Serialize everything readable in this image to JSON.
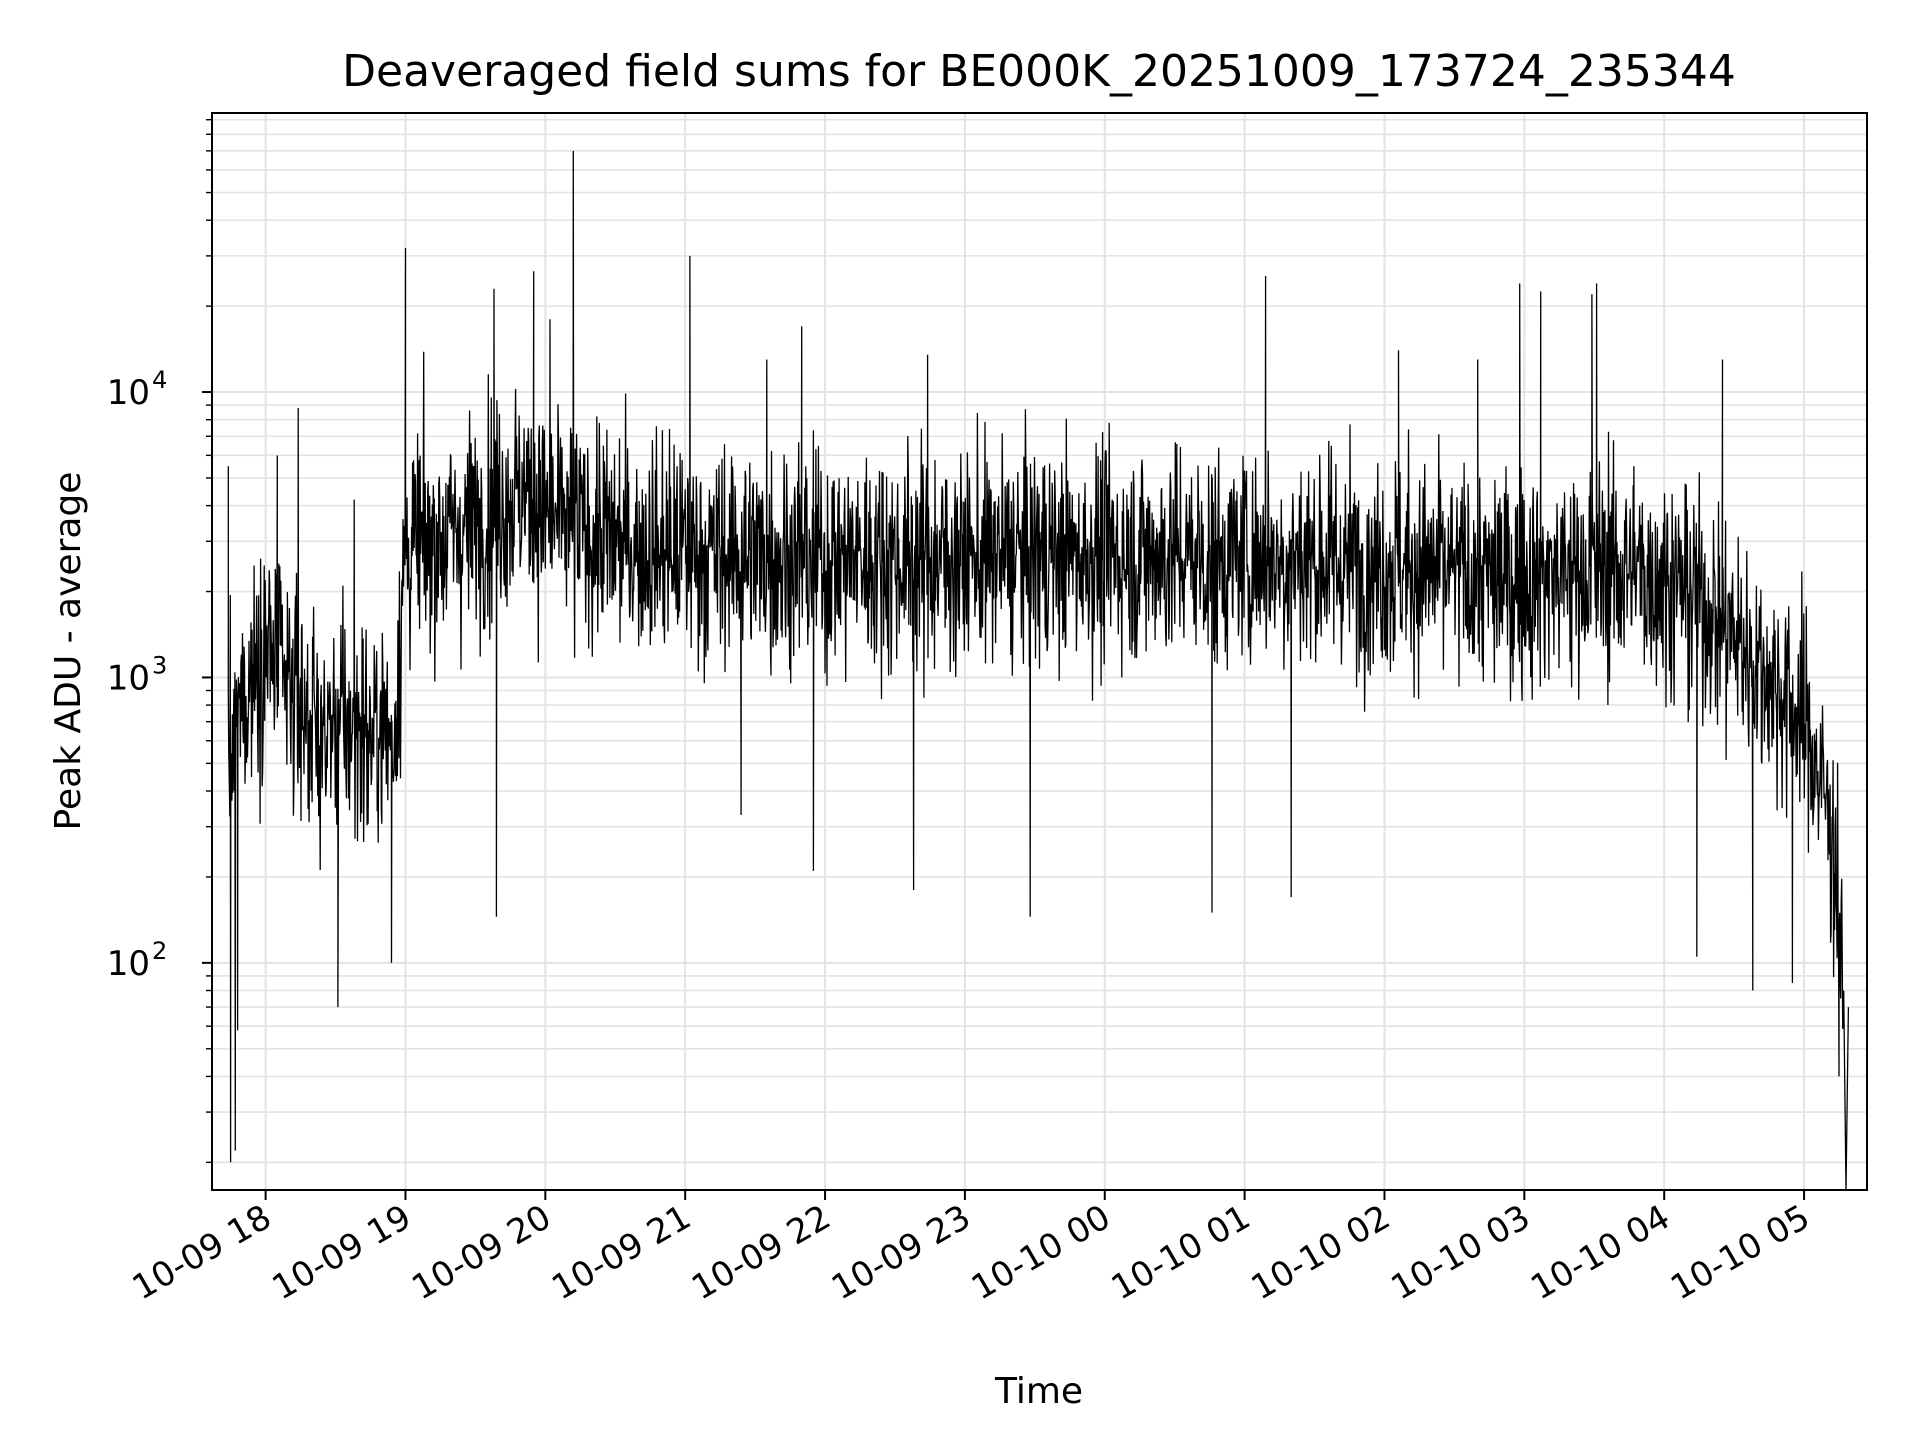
{
  "chart_data": {
    "type": "line",
    "title": "Deaveraged field sums for BE000K_20251009_173724_235344",
    "xlabel": "Time",
    "ylabel": "Peak ADU - average",
    "yscale": "log",
    "ylim": [
      16,
      95000
    ],
    "xlim": [
      "2025-10-09 17:37",
      "2025-10-10 05:27"
    ],
    "grid": true,
    "series_color": "#000000",
    "x_ticks": [
      {
        "label": "10-09 18",
        "t": "2025-10-09 18:00"
      },
      {
        "label": "10-09 19",
        "t": "2025-10-09 19:00"
      },
      {
        "label": "10-09 20",
        "t": "2025-10-09 20:00"
      },
      {
        "label": "10-09 21",
        "t": "2025-10-09 21:00"
      },
      {
        "label": "10-09 22",
        "t": "2025-10-09 22:00"
      },
      {
        "label": "10-09 23",
        "t": "2025-10-09 23:00"
      },
      {
        "label": "10-10 00",
        "t": "2025-10-10 00:00"
      },
      {
        "label": "10-10 01",
        "t": "2025-10-10 01:00"
      },
      {
        "label": "10-10 02",
        "t": "2025-10-10 02:00"
      },
      {
        "label": "10-10 03",
        "t": "2025-10-10 03:00"
      },
      {
        "label": "10-10 04",
        "t": "2025-10-10 04:00"
      },
      {
        "label": "10-10 05",
        "t": "2025-10-10 05:00"
      }
    ],
    "y_ticks": [
      {
        "base": "10",
        "exp": "2",
        "value": 100
      },
      {
        "base": "10",
        "exp": "3",
        "value": 1000
      },
      {
        "base": "10",
        "exp": "4",
        "value": 10000
      }
    ],
    "series": [
      {
        "x": [
          "2025-10-09 17:44",
          "2025-10-09 17:46",
          "2025-10-09 17:48",
          "2025-10-09 17:50",
          "2025-10-09 17:52",
          "2025-10-09 17:55",
          "2025-10-09 18:00",
          "2025-10-09 18:05",
          "2025-10-09 18:09",
          "2025-10-09 18:15",
          "2025-10-09 18:20",
          "2025-10-09 18:25",
          "2025-10-09 18:30",
          "2025-10-09 18:35",
          "2025-10-09 18:40",
          "2025-10-09 18:45",
          "2025-10-09 18:50",
          "2025-10-09 18:55",
          "2025-10-09 19:00",
          "2025-10-09 19:05",
          "2025-10-09 19:10",
          "2025-10-09 19:20",
          "2025-10-09 19:30",
          "2025-10-09 19:38",
          "2025-10-09 19:45",
          "2025-10-09 19:50",
          "2025-10-09 19:55",
          "2025-10-09 20:00",
          "2025-10-09 20:05",
          "2025-10-09 20:12",
          "2025-10-09 20:20",
          "2025-10-09 20:30",
          "2025-10-09 20:40",
          "2025-10-09 20:50",
          "2025-10-09 21:00",
          "2025-10-09 21:10",
          "2025-10-09 21:20",
          "2025-10-09 21:30",
          "2025-10-09 21:45",
          "2025-10-09 21:55",
          "2025-10-09 22:00",
          "2025-10-09 22:15",
          "2025-10-09 22:30",
          "2025-10-09 22:45",
          "2025-10-09 22:55",
          "2025-10-09 23:00",
          "2025-10-09 23:15",
          "2025-10-09 23:30",
          "2025-10-09 23:45",
          "2025-10-10 00:00",
          "2025-10-10 00:15",
          "2025-10-10 00:30",
          "2025-10-10 00:45",
          "2025-10-10 00:55",
          "2025-10-10 01:00",
          "2025-10-10 01:15",
          "2025-10-10 01:30",
          "2025-10-10 01:45",
          "2025-10-10 02:00",
          "2025-10-10 02:15",
          "2025-10-10 02:30",
          "2025-10-10 02:45",
          "2025-10-10 03:00",
          "2025-10-10 03:15",
          "2025-10-10 03:30",
          "2025-10-10 03:45",
          "2025-10-10 04:00",
          "2025-10-10 04:10",
          "2025-10-10 04:20",
          "2025-10-10 04:30",
          "2025-10-10 04:40",
          "2025-10-10 04:50",
          "2025-10-10 05:00",
          "2025-10-10 05:05",
          "2025-10-10 05:10",
          "2025-10-10 05:13",
          "2025-10-10 05:15",
          "2025-10-10 05:17"
        ],
        "center": [
          600,
          500,
          700,
          800,
          900,
          1100,
          1300,
          1100,
          900,
          800,
          700,
          600,
          700,
          650,
          700,
          600,
          700,
          600,
          2800,
          2900,
          3000,
          3200,
          3500,
          4000,
          4300,
          4500,
          4000,
          3800,
          3500,
          3400,
          3200,
          3000,
          2900,
          2800,
          2800,
          2700,
          2700,
          2700,
          2600,
          2600,
          2600,
          2600,
          2600,
          2600,
          2600,
          2600,
          2650,
          2700,
          2700,
          2700,
          2700,
          2700,
          2600,
          2600,
          2700,
          2600,
          2600,
          2500,
          2500,
          2400,
          2300,
          2200,
          2200,
          2300,
          2400,
          2400,
          2200,
          2000,
          1700,
          1400,
          1100,
          900,
          700,
          500,
          350,
          250,
          150,
          60
        ],
        "spikes": [
          {
            "x": "2025-10-09 17:44",
            "y": 5500
          },
          {
            "x": "2025-10-09 17:45",
            "y": 20
          },
          {
            "x": "2025-10-09 17:47",
            "y": 22
          },
          {
            "x": "2025-10-09 17:48",
            "y": 58
          },
          {
            "x": "2025-10-09 18:05",
            "y": 6000
          },
          {
            "x": "2025-10-09 18:14",
            "y": 8800
          },
          {
            "x": "2025-10-09 18:31",
            "y": 70
          },
          {
            "x": "2025-10-09 18:38",
            "y": 4200
          },
          {
            "x": "2025-10-09 18:54",
            "y": 100
          },
          {
            "x": "2025-10-09 19:00",
            "y": 32000
          },
          {
            "x": "2025-10-09 19:38",
            "y": 23000
          },
          {
            "x": "2025-10-09 19:39",
            "y": 145
          },
          {
            "x": "2025-10-09 19:55",
            "y": 26500
          },
          {
            "x": "2025-10-09 20:02",
            "y": 18000
          },
          {
            "x": "2025-10-09 20:12",
            "y": 70000
          },
          {
            "x": "2025-10-09 21:02",
            "y": 30000
          },
          {
            "x": "2025-10-09 21:24",
            "y": 330
          },
          {
            "x": "2025-10-09 21:35",
            "y": 13000
          },
          {
            "x": "2025-10-09 21:50",
            "y": 17000
          },
          {
            "x": "2025-10-09 21:55",
            "y": 210
          },
          {
            "x": "2025-10-09 22:38",
            "y": 180
          },
          {
            "x": "2025-10-09 22:44",
            "y": 13500
          },
          {
            "x": "2025-10-09 23:28",
            "y": 145
          },
          {
            "x": "2025-10-10 00:46",
            "y": 150
          },
          {
            "x": "2025-10-10 01:09",
            "y": 25500
          },
          {
            "x": "2025-10-10 01:20",
            "y": 170
          },
          {
            "x": "2025-10-10 02:06",
            "y": 14000
          },
          {
            "x": "2025-10-10 02:40",
            "y": 13000
          },
          {
            "x": "2025-10-10 02:58",
            "y": 24000
          },
          {
            "x": "2025-10-10 03:07",
            "y": 22500
          },
          {
            "x": "2025-10-10 03:29",
            "y": 22000
          },
          {
            "x": "2025-10-10 03:31",
            "y": 24000
          },
          {
            "x": "2025-10-10 03:47",
            "y": 5500
          },
          {
            "x": "2025-10-10 04:14",
            "y": 105
          },
          {
            "x": "2025-10-10 04:25",
            "y": 13000
          },
          {
            "x": "2025-10-10 04:38",
            "y": 80
          },
          {
            "x": "2025-10-10 04:55",
            "y": 85
          },
          {
            "x": "2025-10-10 05:15",
            "y": 40
          },
          {
            "x": "2025-10-10 05:18",
            "y": 16
          },
          {
            "x": "2025-10-10 05:19",
            "y": 70
          }
        ]
      }
    ]
  }
}
